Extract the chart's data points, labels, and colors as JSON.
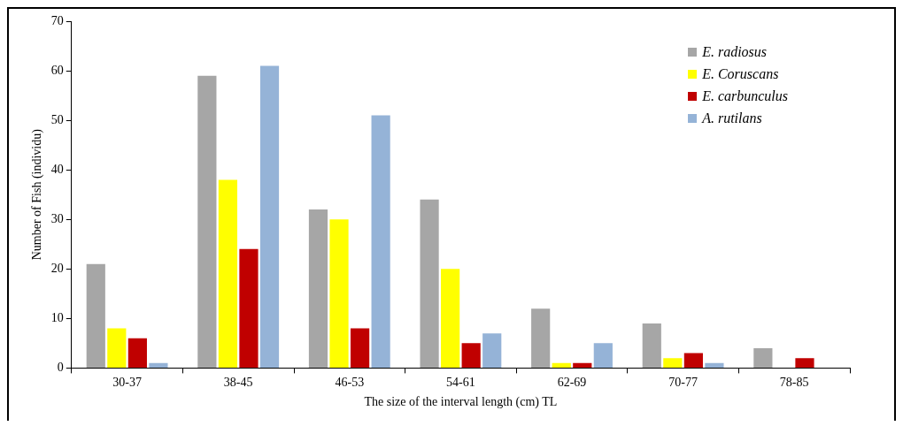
{
  "chart_data": {
    "type": "bar",
    "xlabel": "The size of the interval length (cm) TL",
    "ylabel": "Number of Fish (individu)",
    "categories": [
      "30-37",
      "38-45",
      "46-53",
      "54-61",
      "62-69",
      "70-77",
      "78-85"
    ],
    "series": [
      {
        "name": "E. radiosus",
        "color": "#a6a6a6",
        "values": [
          21,
          59,
          32,
          34,
          12,
          9,
          4
        ]
      },
      {
        "name": "E. Coruscans",
        "color": "#ffff00",
        "values": [
          8,
          38,
          30,
          20,
          1,
          2,
          0
        ]
      },
      {
        "name": "E. carbunculus",
        "color": "#c00000",
        "values": [
          6,
          24,
          8,
          5,
          1,
          3,
          2
        ]
      },
      {
        "name": "A. rutilans",
        "color": "#95b3d7",
        "values": [
          1,
          61,
          51,
          7,
          5,
          1,
          0
        ]
      }
    ],
    "ylim": [
      0,
      70
    ],
    "yticks": [
      0,
      10,
      20,
      30,
      40,
      50,
      60,
      70
    ],
    "grid": false,
    "legend": "top right"
  }
}
